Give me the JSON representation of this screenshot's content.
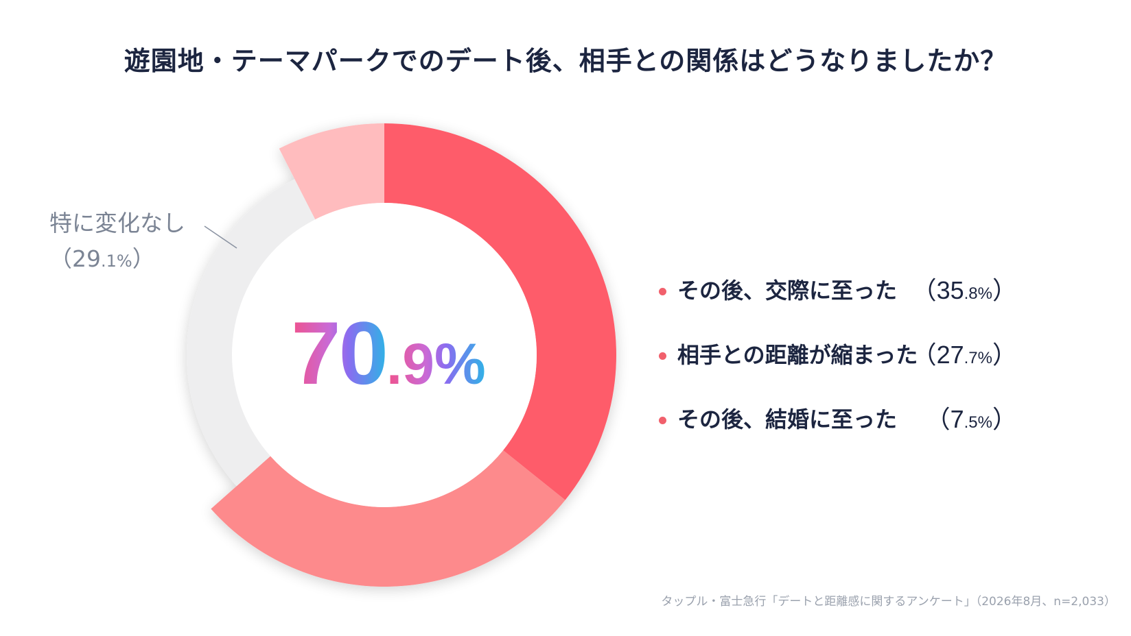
{
  "header": {
    "title": "遊園地・テーマパークでのデート後、相手との関係はどうなりましたか？"
  },
  "center": {
    "value_main": "70",
    "value_decimal": ".9%"
  },
  "callout": {
    "label": "特に変化なし",
    "open_paren": "（",
    "value_main": "29",
    "value_decimal": ".1%",
    "close_paren": "）"
  },
  "legend": {
    "items": [
      {
        "label": "その後、交際に至った",
        "open_paren": "（",
        "value_main": "35",
        "value_decimal": ".8%",
        "close_paren": "）"
      },
      {
        "label": "相手との距離が縮まった",
        "open_paren": "（",
        "value_main": "27",
        "value_decimal": ".7%",
        "close_paren": "）"
      },
      {
        "label": "その後、結婚に至った",
        "open_paren": "（",
        "value_main": "7",
        "value_decimal": ".5%",
        "close_paren": "）"
      }
    ]
  },
  "source": {
    "text": "タップル・富士急行「デートと距離感に関するアンケート」（2026年8月、n=2,033）"
  },
  "chart_data": {
    "type": "pie",
    "categories": [
      "その後、交際に至った",
      "相手との距離が縮まった",
      "特に変化なし",
      "その後、結婚に至った"
    ],
    "values": [
      35.8,
      27.7,
      29.1,
      7.5
    ],
    "center_label": "70.9%",
    "legend_placement": "right",
    "colors": [
      "#fe5c6a",
      "#fd8a8c",
      "#eeeeef",
      "#ffbcbe"
    ]
  }
}
